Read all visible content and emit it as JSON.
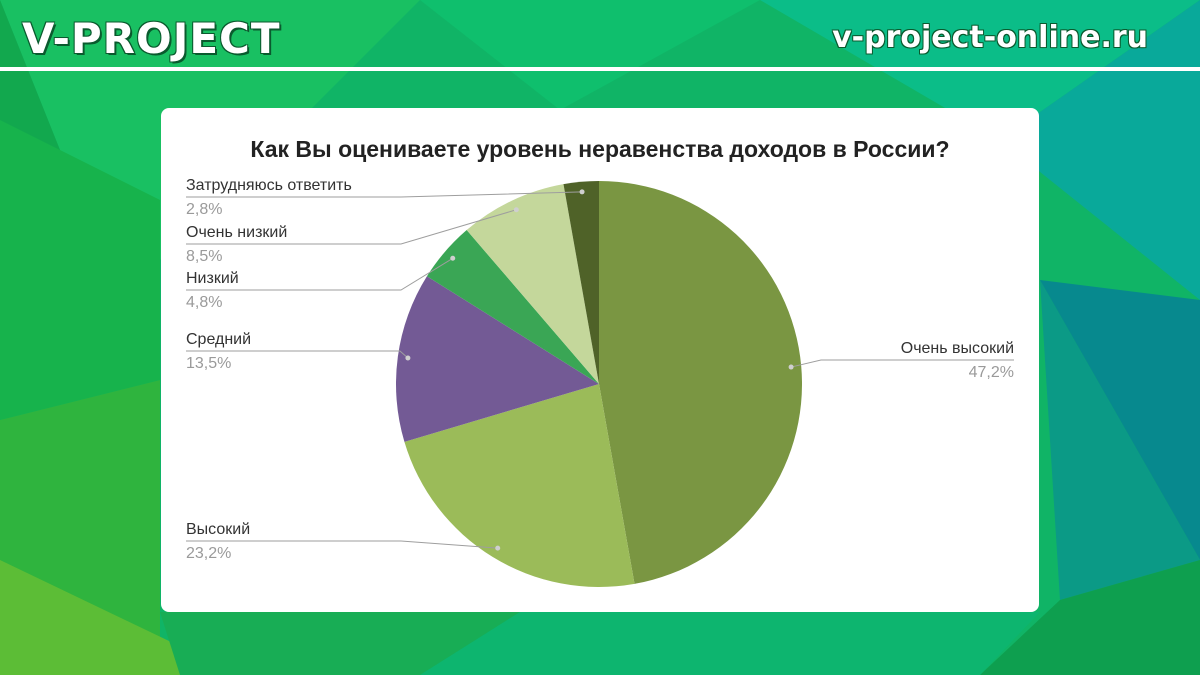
{
  "header": {
    "brand": "V-PROJECT",
    "site": "v-project-online.ru"
  },
  "chart_data": {
    "type": "pie",
    "title": "Как Вы оцениваете уровень неравенства доходов в России?",
    "slices": [
      {
        "label": "Очень высокий",
        "value": 47.2,
        "display": "47,2%",
        "color": "#7a9642"
      },
      {
        "label": "Высокий",
        "value": 23.2,
        "display": "23,2%",
        "color": "#9bbb59"
      },
      {
        "label": "Средний",
        "value": 13.5,
        "display": "13,5%",
        "color": "#735a95"
      },
      {
        "label": "Низкий",
        "value": 4.8,
        "display": "4,8%",
        "color": "#3aa655"
      },
      {
        "label": "Очень низкий",
        "value": 8.5,
        "display": "8,5%",
        "color": "#c4d79b"
      },
      {
        "label": "Затрудняюсь ответить",
        "value": 2.8,
        "display": "2,8%",
        "color": "#4f6228"
      }
    ],
    "legend": "none",
    "labels": "outside-with-leader-lines"
  }
}
